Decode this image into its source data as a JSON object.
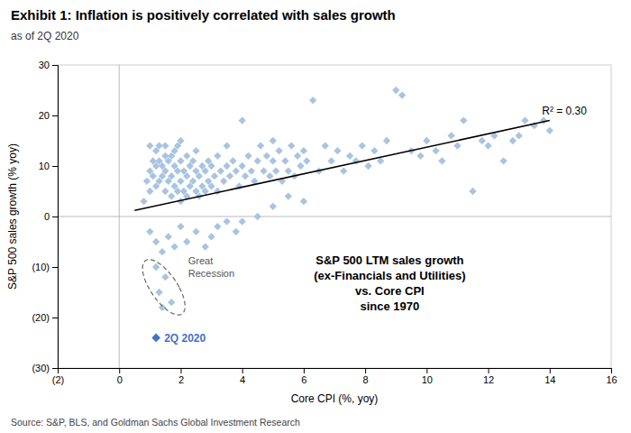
{
  "chart_data": {
    "type": "scatter",
    "title": "Exhibit 1: Inflation is positively correlated with sales growth",
    "subtitle": "as of 2Q 2020",
    "xlabel": "Core CPI (%, yoy)",
    "ylabel": "S&P 500 sales growth (% yoy)",
    "source": "Source: S&P, BLS, and Goldman Sachs Global Investment Research",
    "annotation_text": "S&P 500 LTM sales growth\n(ex-Financials and Utilities)\nvs. Core CPI\nsince 1970",
    "r2_label": "R² = 0.30",
    "grid": false,
    "xlim": [
      -2,
      16
    ],
    "ylim": [
      -30,
      30
    ],
    "xticks": [
      {
        "value": -2,
        "label": "(2)"
      },
      0,
      2,
      4,
      6,
      8,
      10,
      12,
      14,
      16
    ],
    "yticks": [
      {
        "value": -30,
        "label": "(30)"
      },
      {
        "value": -20,
        "label": "(20)"
      },
      {
        "value": -10,
        "label": "(10)"
      },
      0,
      10,
      20,
      30
    ],
    "series": [
      {
        "type": "scatter",
        "marker": "diamond",
        "color": "#a8c4e0",
        "x": [
          0.8,
          0.9,
          1.0,
          1.0,
          1.0,
          1.1,
          1.1,
          1.2,
          1.2,
          1.2,
          1.3,
          1.3,
          1.3,
          1.4,
          1.4,
          1.5,
          1.5,
          1.5,
          1.5,
          1.6,
          1.6,
          1.7,
          1.7,
          1.7,
          1.8,
          1.8,
          1.8,
          1.9,
          1.9,
          1.9,
          2.0,
          2.0,
          2.0,
          2.0,
          2.1,
          2.1,
          2.2,
          2.2,
          2.2,
          2.3,
          2.3,
          2.4,
          2.4,
          2.5,
          2.5,
          2.5,
          2.6,
          2.6,
          2.7,
          2.7,
          2.8,
          2.8,
          2.9,
          2.9,
          3.0,
          3.0,
          3.1,
          3.2,
          3.2,
          3.3,
          3.4,
          3.5,
          3.5,
          3.6,
          3.7,
          3.8,
          3.9,
          4.0,
          4.0,
          4.1,
          4.2,
          4.3,
          4.4,
          4.5,
          4.6,
          4.7,
          4.8,
          4.9,
          5.0,
          5.0,
          5.1,
          5.2,
          5.3,
          5.4,
          5.5,
          5.6,
          5.7,
          5.8,
          5.9,
          6.0,
          6.1,
          6.3,
          6.5,
          6.7,
          6.9,
          7.1,
          7.3,
          7.5,
          7.7,
          7.9,
          8.1,
          8.3,
          8.5,
          8.7,
          9.0,
          9.2,
          9.5,
          9.8,
          10.0,
          10.3,
          10.5,
          10.8,
          11.0,
          11.2,
          11.5,
          11.8,
          12.0,
          12.2,
          12.5,
          12.8,
          13.0,
          13.2,
          13.5,
          13.8,
          14.0,
          1.0,
          1.2,
          1.4,
          1.6,
          1.8,
          2.0,
          2.2,
          2.5,
          2.8,
          3.0,
          3.2,
          3.5,
          3.8,
          4.0,
          4.5,
          5.0,
          5.5,
          6.0
        ],
        "values": [
          3.0,
          7.0,
          5.0,
          9.0,
          14.0,
          8.0,
          11.0,
          6.0,
          10.0,
          13.0,
          7.0,
          11.0,
          14.0,
          8.0,
          10.0,
          5.0,
          9.0,
          12.0,
          14.0,
          7.0,
          11.0,
          4.0,
          8.0,
          12.0,
          6.0,
          10.0,
          13.0,
          5.0,
          9.0,
          14.0,
          3.0,
          7.0,
          11.0,
          15.0,
          5.0,
          9.0,
          4.0,
          8.0,
          12.0,
          6.0,
          10.0,
          7.0,
          11.0,
          5.0,
          9.0,
          13.0,
          4.0,
          8.0,
          6.0,
          10.0,
          5.0,
          9.0,
          7.0,
          11.0,
          6.0,
          10.0,
          8.0,
          5.0,
          12.0,
          9.0,
          7.0,
          10.0,
          14.0,
          8.0,
          11.0,
          9.0,
          6.0,
          10.0,
          19.0,
          8.0,
          12.0,
          9.0,
          7.0,
          11.0,
          14.0,
          9.0,
          12.0,
          8.0,
          11.0,
          15.0,
          9.0,
          13.0,
          7.0,
          11.0,
          9.0,
          14.0,
          8.0,
          12.0,
          10.0,
          13.0,
          11.0,
          23.0,
          9.0,
          14.0,
          11.0,
          13.0,
          9.0,
          12.0,
          11.0,
          14.0,
          10.0,
          13.0,
          11.0,
          15.0,
          25.0,
          24.0,
          13.0,
          12.0,
          15.0,
          13.0,
          11.0,
          16.0,
          14.0,
          19.0,
          5.0,
          15.0,
          14.0,
          16.0,
          11.0,
          15.0,
          16.0,
          19.0,
          18.0,
          19.0,
          17.0,
          -3.0,
          -5.0,
          -7.0,
          -4.0,
          -6.0,
          -2.0,
          -5.0,
          -3.0,
          -6.0,
          -4.0,
          -2.0,
          -1.0,
          -3.0,
          -1.0,
          0.0,
          2.0,
          4.0,
          3.0
        ]
      },
      {
        "type": "scatter",
        "marker": "diamond",
        "color": "#a8c4e0",
        "label": "Great\nRecession",
        "x": [
          1.2,
          1.5,
          1.3,
          1.7,
          1.4
        ],
        "values": [
          -10.0,
          -12.0,
          -15.0,
          -17.0,
          -18.0
        ]
      },
      {
        "type": "scatter",
        "marker": "diamond",
        "color": "#4472c4",
        "label": "2Q 2020",
        "x": [
          1.2
        ],
        "values": [
          -24.0
        ]
      },
      {
        "type": "line",
        "color": "#000000",
        "x": [
          0.5,
          14.0
        ],
        "values": [
          1.2,
          19.0
        ]
      }
    ],
    "ellipse": {
      "center_x": 1.45,
      "center_y": -14.0,
      "width": 1.0,
      "height": 11.0,
      "angle": 5
    }
  }
}
